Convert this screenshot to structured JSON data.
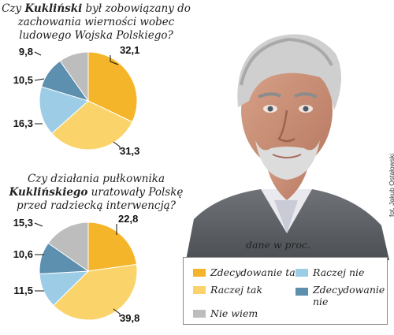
{
  "questions": [
    {
      "pre": "Czy ",
      "bold": "Kukliński",
      "post": " był zobowiązany do zachowania wierności wobec ludowego Wojska Polskiego?"
    },
    {
      "pre": "Czy działania pułkownika ",
      "bold": "Kuklińskiego",
      "post": " uratowały Polskę przed radziecką interwencją?"
    }
  ],
  "unit_note": "dane w proc.",
  "photo_credit": "fot. Jakub Ostałowski",
  "legend": [
    {
      "key": "zdecydowanie_tak",
      "label": "Zdecydowanie tak",
      "color": "#F5B52A"
    },
    {
      "key": "raczej_tak",
      "label": "Raczej tak",
      "color": "#FAD46A"
    },
    {
      "key": "nie_wiem",
      "label": "Nie wiem",
      "color": "#BDBDBD"
    },
    {
      "key": "raczej_nie",
      "label": "Raczej nie",
      "color": "#9DCDE6"
    },
    {
      "key": "zdecydowanie_nie",
      "label": "Zdecydowanie nie",
      "color": "#5D8FAE"
    }
  ],
  "chart_data": [
    {
      "type": "pie",
      "title": "Czy Kukliński był zobowiązany do zachowania wierności wobec ludowego Wojska Polskiego?",
      "categories": [
        "Zdecydowanie tak",
        "Raczej tak",
        "Raczej nie",
        "Zdecydowanie nie",
        "Nie wiem"
      ],
      "values": [
        32.1,
        31.3,
        16.3,
        10.5,
        9.8
      ],
      "labels": [
        "32,1",
        "31,3",
        "16,3",
        "10,5",
        "9,8"
      ]
    },
    {
      "type": "pie",
      "title": "Czy działania pułkownika Kuklińskiego uratowały Polskę przed radziecką interwencją?",
      "categories": [
        "Zdecydowanie tak",
        "Raczej tak",
        "Raczej nie",
        "Zdecydowanie nie",
        "Nie wiem"
      ],
      "values": [
        22.8,
        39.8,
        11.5,
        10.6,
        15.3
      ],
      "labels": [
        "22,8",
        "39,8",
        "11,5",
        "10,6",
        "15,3"
      ]
    }
  ]
}
